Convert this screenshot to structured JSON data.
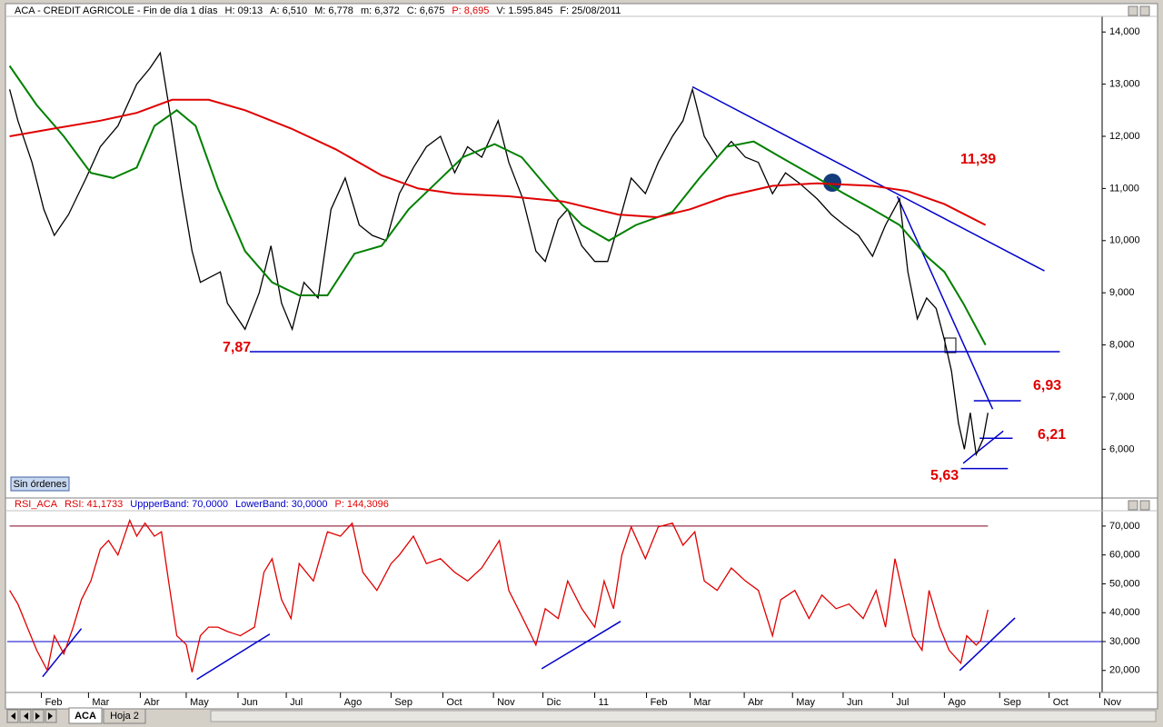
{
  "header": {
    "title": "ACA - CREDIT AGRICOLE - Fin de día 1 días",
    "fields": [
      {
        "text": "H: 09:13",
        "color": "#000000"
      },
      {
        "text": "A: 6,510",
        "color": "#000000"
      },
      {
        "text": "M: 6,778",
        "color": "#000000"
      },
      {
        "text": "m: 6,372",
        "color": "#000000"
      },
      {
        "text": "C: 6,675",
        "color": "#000000"
      },
      {
        "text": "P: 8,695",
        "color": "#e00000"
      },
      {
        "text": "V: 1.595.845",
        "color": "#000000"
      },
      {
        "text": "F: 25/08/2011",
        "color": "#000000"
      }
    ]
  },
  "rsi_header": {
    "fields": [
      {
        "text": "RSI_ACA",
        "color": "#e00000"
      },
      {
        "text": "RSI: 41,1733",
        "color": "#e00000"
      },
      {
        "text": "UppperBand: 70,0000",
        "color": "#0000cc"
      },
      {
        "text": "LowerBand: 30,0000",
        "color": "#0000cc"
      },
      {
        "text": "P: 144,3096",
        "color": "#e00000"
      }
    ]
  },
  "ui": {
    "button": "Sin órdenes",
    "tabs": [
      "ACA",
      "Hoja 2"
    ]
  },
  "chart_data": [
    {
      "type": "line",
      "xlim": [
        0,
        93
      ],
      "ylim": [
        5.1,
        14.3
      ],
      "yticks": [
        {
          "value": 6,
          "label": "6,000"
        },
        {
          "value": 7,
          "label": "7,000"
        },
        {
          "value": 8,
          "label": "8,000"
        },
        {
          "value": 9,
          "label": "9,000"
        },
        {
          "value": 10,
          "label": "10,000"
        },
        {
          "value": 11,
          "label": "11,000"
        },
        {
          "value": 12,
          "label": "12,000"
        },
        {
          "value": 13,
          "label": "13,000"
        },
        {
          "value": 14,
          "label": "14,000"
        }
      ],
      "series": [
        {
          "color": "#000000",
          "x": [
            0.2,
            0.9,
            2.1,
            3.1,
            4.0,
            5.2,
            6.7,
            7.9,
            9.4,
            11.0,
            12.1,
            13.0,
            14.0,
            14.8,
            15.7,
            16.4,
            18.1,
            18.7,
            20.2,
            21.4,
            22.4,
            23.3,
            24.2,
            25.2,
            26.4,
            27.5,
            28.7,
            29.9,
            31.0,
            32.2,
            33.3,
            34.5,
            35.6,
            36.8,
            38.0,
            39.1,
            40.3,
            41.7,
            42.6,
            43.8,
            44.9,
            45.7,
            46.8,
            47.6,
            48.8,
            49.9,
            51.0,
            51.9,
            53.0,
            54.2,
            55.3,
            56.5,
            57.4,
            58.2,
            59.2,
            60.3,
            61.5,
            62.7,
            63.8,
            65.0,
            66.1,
            67.3,
            68.8,
            70.0,
            71.1,
            72.3,
            73.5,
            74.6,
            75.8,
            76.5,
            77.3,
            78.1,
            78.9,
            79.6,
            80.2,
            80.8,
            81.3,
            81.8,
            82.3,
            82.9,
            83.3
          ],
          "values": [
            12.9,
            12.3,
            11.5,
            10.6,
            10.1,
            10.5,
            11.2,
            11.8,
            12.2,
            13.0,
            13.3,
            13.6,
            12.2,
            11.0,
            9.8,
            9.2,
            9.4,
            8.8,
            8.3,
            9.0,
            9.9,
            8.8,
            8.3,
            9.2,
            8.9,
            10.6,
            11.2,
            10.3,
            10.1,
            10.0,
            10.9,
            11.4,
            11.8,
            12.0,
            11.3,
            11.8,
            11.6,
            12.3,
            11.5,
            10.8,
            9.8,
            9.6,
            10.4,
            10.6,
            9.9,
            9.6,
            9.6,
            10.3,
            11.2,
            10.9,
            11.5,
            12.0,
            12.3,
            12.9,
            12.0,
            11.6,
            11.9,
            11.6,
            11.5,
            10.9,
            11.3,
            11.1,
            10.8,
            10.5,
            10.3,
            10.1,
            9.7,
            10.3,
            10.8,
            9.4,
            8.5,
            8.9,
            8.7,
            8.1,
            7.5,
            6.5,
            6.0,
            6.7,
            5.9,
            6.2,
            6.7
          ]
        },
        {
          "color": "#008000",
          "x": [
            0.2,
            2.5,
            4.8,
            7.1,
            9.0,
            11.0,
            12.5,
            14.4,
            16.0,
            17.9,
            20.2,
            22.5,
            24.8,
            27.2,
            29.5,
            31.8,
            34.1,
            36.4,
            38.7,
            41.4,
            43.7,
            46.5,
            48.8,
            51.1,
            53.4,
            56.5,
            58.8,
            61.1,
            63.4,
            65.7,
            68.8,
            71.1,
            73.5,
            75.8,
            78.1,
            79.6,
            81.2,
            83.1
          ],
          "values": [
            13.35,
            12.6,
            12.0,
            11.3,
            11.2,
            11.4,
            12.2,
            12.5,
            12.2,
            11.0,
            9.8,
            9.2,
            8.95,
            8.95,
            9.75,
            9.9,
            10.6,
            11.1,
            11.6,
            11.85,
            11.6,
            10.85,
            10.3,
            10.0,
            10.3,
            10.55,
            11.2,
            11.8,
            11.9,
            11.6,
            11.2,
            10.9,
            10.6,
            10.3,
            9.7,
            9.4,
            8.8,
            8.0
          ]
        },
        {
          "color": "#e00000",
          "x": [
            0.2,
            4.0,
            7.9,
            11.0,
            14.0,
            17.1,
            20.2,
            24.1,
            27.9,
            31.8,
            34.9,
            38.0,
            42.6,
            47.2,
            51.9,
            55.2,
            58.0,
            61.1,
            65.0,
            68.8,
            73.5,
            76.5,
            79.6,
            83.1
          ],
          "values": [
            12.0,
            12.15,
            12.3,
            12.45,
            12.7,
            12.7,
            12.5,
            12.15,
            11.75,
            11.25,
            11.0,
            10.9,
            10.85,
            10.75,
            10.5,
            10.45,
            10.6,
            10.85,
            11.05,
            11.1,
            11.05,
            10.95,
            10.7,
            10.3
          ]
        }
      ],
      "lines": [
        {
          "color": "#0000cc",
          "x": [
            20.6,
            89.4
          ],
          "values": [
            7.87,
            7.87
          ]
        },
        {
          "color": "#0000cc",
          "x": [
            58.2,
            88.1
          ],
          "values": [
            12.95,
            9.42
          ]
        },
        {
          "color": "#0000cc",
          "x": [
            75.6,
            83.7
          ],
          "values": [
            10.85,
            6.77
          ]
        },
        {
          "color": "#0000cc",
          "x": [
            82.1,
            86.1
          ],
          "values": [
            6.93,
            6.93
          ]
        },
        {
          "color": "#0000cc",
          "x": [
            82.6,
            85.4
          ],
          "values": [
            6.21,
            6.21
          ]
        },
        {
          "color": "#0000cc",
          "x": [
            81.0,
            85.0
          ],
          "values": [
            5.63,
            5.63
          ]
        },
        {
          "color": "#0000cc",
          "x": [
            81.2,
            84.6
          ],
          "values": [
            5.73,
            6.35
          ]
        }
      ],
      "annotations": [
        "7,87",
        "11,39",
        "6,93",
        "6,21",
        "5,63"
      ],
      "annotation_color": "#e00000"
    },
    {
      "type": "line",
      "xlim": [
        0,
        93
      ],
      "ylim": [
        13,
        75
      ],
      "yticks": [
        {
          "value": 20,
          "label": "20,000"
        },
        {
          "value": 30,
          "label": "30,000"
        },
        {
          "value": 40,
          "label": "40,000"
        },
        {
          "value": 50,
          "label": "50,000"
        },
        {
          "value": 60,
          "label": "60,000"
        },
        {
          "value": 70,
          "label": "70,000"
        }
      ],
      "xticks": [
        {
          "value": 2.9,
          "label": "Feb"
        },
        {
          "value": 6.9,
          "label": "Mar"
        },
        {
          "value": 11.3,
          "label": "Abr"
        },
        {
          "value": 15.2,
          "label": "May"
        },
        {
          "value": 19.6,
          "label": "Jun"
        },
        {
          "value": 23.7,
          "label": "Jul"
        },
        {
          "value": 28.3,
          "label": "Ago"
        },
        {
          "value": 32.6,
          "label": "Sep"
        },
        {
          "value": 37.0,
          "label": "Oct"
        },
        {
          "value": 41.3,
          "label": "Nov"
        },
        {
          "value": 45.5,
          "label": "Dic"
        },
        {
          "value": 49.9,
          "label": "11"
        },
        {
          "value": 54.3,
          "label": "Feb"
        },
        {
          "value": 58.0,
          "label": "Mar"
        },
        {
          "value": 62.6,
          "label": "Abr"
        },
        {
          "value": 66.7,
          "label": "May"
        },
        {
          "value": 71.0,
          "label": "Jun"
        },
        {
          "value": 75.2,
          "label": "Jul"
        },
        {
          "value": 79.6,
          "label": "Ago"
        },
        {
          "value": 84.3,
          "label": "Sep"
        },
        {
          "value": 88.5,
          "label": "Oct"
        },
        {
          "value": 92.8,
          "label": "Nov"
        }
      ],
      "series": [
        {
          "color": "#e00000",
          "x": [
            0.2,
            0.9,
            1.7,
            2.5,
            3.4,
            4.0,
            4.8,
            5.6,
            6.3,
            7.1,
            7.9,
            8.6,
            9.4,
            10.4,
            11.0,
            11.7,
            12.5,
            13.1,
            13.7,
            14.4,
            15.2,
            15.7,
            16.4,
            17.1,
            17.9,
            18.7,
            19.8,
            21.0,
            21.8,
            22.5,
            23.3,
            24.1,
            24.8,
            26.0,
            27.2,
            28.3,
            29.3,
            30.2,
            31.4,
            32.6,
            33.3,
            34.5,
            35.6,
            36.8,
            38.0,
            39.1,
            40.3,
            41.8,
            42.6,
            43.8,
            44.9,
            45.7,
            46.8,
            47.6,
            48.8,
            49.9,
            50.7,
            51.5,
            52.2,
            53.0,
            54.2,
            55.3,
            56.5,
            57.4,
            58.4,
            59.2,
            60.3,
            61.5,
            62.7,
            63.8,
            65.0,
            65.7,
            66.9,
            68.1,
            69.2,
            70.4,
            71.5,
            72.7,
            73.8,
            74.6,
            75.4,
            76.2,
            76.9,
            77.7,
            78.3,
            79.2,
            80.0,
            81.0,
            81.5,
            82.3,
            82.7,
            83.3
          ],
          "values": [
            47.7,
            43,
            35,
            27,
            20,
            32,
            25.7,
            35,
            44.5,
            51,
            62,
            65,
            60,
            72,
            66.5,
            71,
            66.5,
            68,
            51,
            32,
            29,
            19.4,
            32,
            35,
            35,
            33.5,
            32,
            35,
            54,
            58.7,
            44.5,
            38,
            57,
            51,
            68,
            66.5,
            71,
            54,
            47.7,
            57,
            60,
            66.5,
            57,
            58.7,
            54,
            51,
            55.5,
            65,
            47.7,
            38,
            28.8,
            41.4,
            38,
            51,
            41.4,
            35,
            51,
            41.4,
            60,
            69.7,
            58.7,
            69.7,
            71,
            63.4,
            68,
            51,
            47.7,
            55.5,
            51,
            47.7,
            32,
            44.5,
            47.7,
            38,
            46.1,
            41.4,
            43,
            38,
            47.7,
            35,
            58.7,
            44.5,
            32,
            27,
            47.7,
            35,
            27,
            22.5,
            32,
            28.8,
            30.4,
            41
          ]
        }
      ],
      "hlines": [
        {
          "value": 70,
          "color": "#800020",
          "x": [
            0.2,
            83.3
          ]
        },
        {
          "value": 30,
          "color": "#0000cc",
          "x": [
            0,
            93
          ]
        }
      ],
      "lines": [
        {
          "color": "#0000cc",
          "x": [
            3.0,
            6.3
          ],
          "values": [
            17.8,
            34.5
          ]
        },
        {
          "color": "#0000cc",
          "x": [
            16.1,
            22.3
          ],
          "values": [
            16.9,
            32.6
          ]
        },
        {
          "color": "#0000cc",
          "x": [
            45.4,
            52.1
          ],
          "values": [
            20.6,
            37.0
          ]
        },
        {
          "color": "#0000cc",
          "x": [
            80.9,
            85.6
          ],
          "values": [
            20,
            38.2
          ]
        }
      ]
    }
  ]
}
